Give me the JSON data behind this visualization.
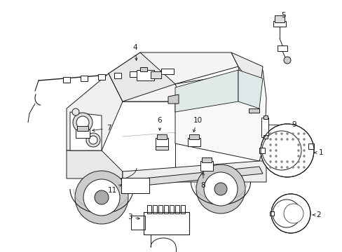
{
  "background_color": "#ffffff",
  "line_color": "#1a1a1a",
  "figsize": [
    4.89,
    3.6
  ],
  "dpi": 100,
  "vehicle": {
    "body_color": "#ffffff",
    "shadow_color": "#cccccc",
    "detail_color": "#888888"
  },
  "components": {
    "label_fontsize": 7.5,
    "arrow_lw": 0.6
  }
}
